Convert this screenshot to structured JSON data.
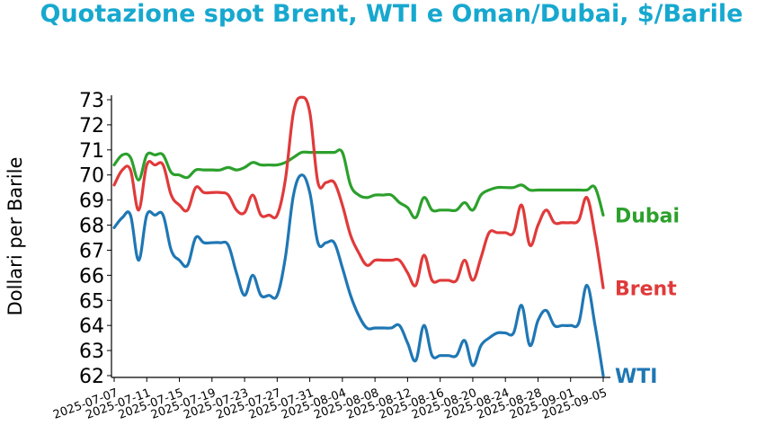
{
  "chart_data": {
    "type": "line",
    "title": "Quotazione spot Brent, WTI e Oman/Dubai, $/Barile",
    "xlabel": "",
    "ylabel": "Dollari per Barile",
    "ylim": [
      62,
      73
    ],
    "xlim": [
      "2025-07-07",
      "2025-09-05"
    ],
    "yticks": [
      62,
      63,
      64,
      65,
      66,
      67,
      68,
      69,
      70,
      71,
      72,
      73
    ],
    "xticks": [
      "2025-07-07",
      "2025-07-11",
      "2025-07-15",
      "2025-07-19",
      "2025-07-23",
      "2025-07-27",
      "2025-07-31",
      "2025-08-04",
      "2025-08-08",
      "2025-08-12",
      "2025-08-16",
      "2025-08-20",
      "2025-08-24",
      "2025-08-28",
      "2025-09-01",
      "2025-09-05"
    ],
    "grid": false,
    "legend": "inline labels at right end of lines",
    "series": [
      {
        "name": "Dubai",
        "color": "#2ca02c",
        "points": [
          [
            "2025-07-07",
            70.4
          ],
          [
            "2025-07-08",
            70.8
          ],
          [
            "2025-07-09",
            70.7
          ],
          [
            "2025-07-10",
            69.8
          ],
          [
            "2025-07-11",
            70.8
          ],
          [
            "2025-07-12",
            70.8
          ],
          [
            "2025-07-13",
            70.8
          ],
          [
            "2025-07-14",
            70.1
          ],
          [
            "2025-07-15",
            70.0
          ],
          [
            "2025-07-16",
            69.9
          ],
          [
            "2025-07-17",
            70.2
          ],
          [
            "2025-07-18",
            70.2
          ],
          [
            "2025-07-19",
            70.2
          ],
          [
            "2025-07-20",
            70.2
          ],
          [
            "2025-07-21",
            70.3
          ],
          [
            "2025-07-22",
            70.2
          ],
          [
            "2025-07-23",
            70.3
          ],
          [
            "2025-07-24",
            70.5
          ],
          [
            "2025-07-25",
            70.4
          ],
          [
            "2025-07-26",
            70.4
          ],
          [
            "2025-07-27",
            70.4
          ],
          [
            "2025-07-28",
            70.5
          ],
          [
            "2025-07-29",
            70.7
          ],
          [
            "2025-07-30",
            70.9
          ],
          [
            "2025-07-31",
            70.9
          ],
          [
            "2025-08-01",
            70.9
          ],
          [
            "2025-08-02",
            70.9
          ],
          [
            "2025-08-03",
            70.9
          ],
          [
            "2025-08-04",
            70.9
          ],
          [
            "2025-08-05",
            69.6
          ],
          [
            "2025-08-06",
            69.2
          ],
          [
            "2025-08-07",
            69.1
          ],
          [
            "2025-08-08",
            69.2
          ],
          [
            "2025-08-09",
            69.2
          ],
          [
            "2025-08-10",
            69.2
          ],
          [
            "2025-08-11",
            68.9
          ],
          [
            "2025-08-12",
            68.7
          ],
          [
            "2025-08-13",
            68.3
          ],
          [
            "2025-08-14",
            69.1
          ],
          [
            "2025-08-15",
            68.6
          ],
          [
            "2025-08-16",
            68.6
          ],
          [
            "2025-08-17",
            68.6
          ],
          [
            "2025-08-18",
            68.6
          ],
          [
            "2025-08-19",
            68.9
          ],
          [
            "2025-08-20",
            68.6
          ],
          [
            "2025-08-21",
            69.2
          ],
          [
            "2025-08-22",
            69.4
          ],
          [
            "2025-08-23",
            69.5
          ],
          [
            "2025-08-24",
            69.5
          ],
          [
            "2025-08-25",
            69.5
          ],
          [
            "2025-08-26",
            69.6
          ],
          [
            "2025-08-27",
            69.4
          ],
          [
            "2025-08-28",
            69.4
          ],
          [
            "2025-08-29",
            69.4
          ],
          [
            "2025-08-30",
            69.4
          ],
          [
            "2025-08-31",
            69.4
          ],
          [
            "2025-09-01",
            69.4
          ],
          [
            "2025-09-02",
            69.4
          ],
          [
            "2025-09-03",
            69.4
          ],
          [
            "2025-09-04",
            69.5
          ],
          [
            "2025-09-05",
            68.4
          ]
        ]
      },
      {
        "name": "Brent",
        "color": "#e03a3a",
        "points": [
          [
            "2025-07-07",
            69.6
          ],
          [
            "2025-07-08",
            70.2
          ],
          [
            "2025-07-09",
            70.2
          ],
          [
            "2025-07-10",
            68.6
          ],
          [
            "2025-07-11",
            70.4
          ],
          [
            "2025-07-12",
            70.4
          ],
          [
            "2025-07-13",
            70.4
          ],
          [
            "2025-07-14",
            69.2
          ],
          [
            "2025-07-15",
            68.8
          ],
          [
            "2025-07-16",
            68.6
          ],
          [
            "2025-07-17",
            69.5
          ],
          [
            "2025-07-18",
            69.3
          ],
          [
            "2025-07-19",
            69.3
          ],
          [
            "2025-07-20",
            69.3
          ],
          [
            "2025-07-21",
            69.2
          ],
          [
            "2025-07-22",
            68.6
          ],
          [
            "2025-07-23",
            68.5
          ],
          [
            "2025-07-24",
            69.2
          ],
          [
            "2025-07-25",
            68.4
          ],
          [
            "2025-07-26",
            68.4
          ],
          [
            "2025-07-27",
            68.4
          ],
          [
            "2025-07-28",
            69.8
          ],
          [
            "2025-07-29",
            72.5
          ],
          [
            "2025-07-30",
            73.1
          ],
          [
            "2025-07-31",
            72.5
          ],
          [
            "2025-08-01",
            69.7
          ],
          [
            "2025-08-02",
            69.7
          ],
          [
            "2025-08-03",
            69.7
          ],
          [
            "2025-08-04",
            68.8
          ],
          [
            "2025-08-05",
            67.6
          ],
          [
            "2025-08-06",
            66.9
          ],
          [
            "2025-08-07",
            66.4
          ],
          [
            "2025-08-08",
            66.6
          ],
          [
            "2025-08-09",
            66.6
          ],
          [
            "2025-08-10",
            66.6
          ],
          [
            "2025-08-11",
            66.6
          ],
          [
            "2025-08-12",
            66.1
          ],
          [
            "2025-08-13",
            65.6
          ],
          [
            "2025-08-14",
            66.8
          ],
          [
            "2025-08-15",
            65.8
          ],
          [
            "2025-08-16",
            65.8
          ],
          [
            "2025-08-17",
            65.8
          ],
          [
            "2025-08-18",
            65.8
          ],
          [
            "2025-08-19",
            66.6
          ],
          [
            "2025-08-20",
            65.8
          ],
          [
            "2025-08-21",
            66.7
          ],
          [
            "2025-08-22",
            67.7
          ],
          [
            "2025-08-23",
            67.7
          ],
          [
            "2025-08-24",
            67.7
          ],
          [
            "2025-08-25",
            67.7
          ],
          [
            "2025-08-26",
            68.8
          ],
          [
            "2025-08-27",
            67.2
          ],
          [
            "2025-08-28",
            68.0
          ],
          [
            "2025-08-29",
            68.6
          ],
          [
            "2025-08-30",
            68.1
          ],
          [
            "2025-08-31",
            68.1
          ],
          [
            "2025-09-01",
            68.1
          ],
          [
            "2025-09-02",
            68.2
          ],
          [
            "2025-09-03",
            69.1
          ],
          [
            "2025-09-04",
            67.6
          ],
          [
            "2025-09-05",
            65.5
          ]
        ]
      },
      {
        "name": "WTI",
        "color": "#1f77b4",
        "points": [
          [
            "2025-07-07",
            67.9
          ],
          [
            "2025-07-08",
            68.3
          ],
          [
            "2025-07-09",
            68.4
          ],
          [
            "2025-07-10",
            66.6
          ],
          [
            "2025-07-11",
            68.4
          ],
          [
            "2025-07-12",
            68.4
          ],
          [
            "2025-07-13",
            68.4
          ],
          [
            "2025-07-14",
            67.0
          ],
          [
            "2025-07-15",
            66.6
          ],
          [
            "2025-07-16",
            66.4
          ],
          [
            "2025-07-17",
            67.5
          ],
          [
            "2025-07-18",
            67.3
          ],
          [
            "2025-07-19",
            67.3
          ],
          [
            "2025-07-20",
            67.3
          ],
          [
            "2025-07-21",
            67.2
          ],
          [
            "2025-07-22",
            66.1
          ],
          [
            "2025-07-23",
            65.2
          ],
          [
            "2025-07-24",
            66.0
          ],
          [
            "2025-07-25",
            65.2
          ],
          [
            "2025-07-26",
            65.2
          ],
          [
            "2025-07-27",
            65.2
          ],
          [
            "2025-07-28",
            66.7
          ],
          [
            "2025-07-29",
            69.2
          ],
          [
            "2025-07-30",
            70.0
          ],
          [
            "2025-07-31",
            69.3
          ],
          [
            "2025-08-01",
            67.3
          ],
          [
            "2025-08-02",
            67.3
          ],
          [
            "2025-08-03",
            67.3
          ],
          [
            "2025-08-04",
            66.3
          ],
          [
            "2025-08-05",
            65.2
          ],
          [
            "2025-08-06",
            64.4
          ],
          [
            "2025-08-07",
            63.9
          ],
          [
            "2025-08-08",
            63.9
          ],
          [
            "2025-08-09",
            63.9
          ],
          [
            "2025-08-10",
            63.9
          ],
          [
            "2025-08-11",
            64.0
          ],
          [
            "2025-08-12",
            63.3
          ],
          [
            "2025-08-13",
            62.6
          ],
          [
            "2025-08-14",
            64.0
          ],
          [
            "2025-08-15",
            62.8
          ],
          [
            "2025-08-16",
            62.8
          ],
          [
            "2025-08-17",
            62.8
          ],
          [
            "2025-08-18",
            62.8
          ],
          [
            "2025-08-19",
            63.4
          ],
          [
            "2025-08-20",
            62.4
          ],
          [
            "2025-08-21",
            63.2
          ],
          [
            "2025-08-22",
            63.5
          ],
          [
            "2025-08-23",
            63.7
          ],
          [
            "2025-08-24",
            63.7
          ],
          [
            "2025-08-25",
            63.7
          ],
          [
            "2025-08-26",
            64.8
          ],
          [
            "2025-08-27",
            63.2
          ],
          [
            "2025-08-28",
            64.2
          ],
          [
            "2025-08-29",
            64.6
          ],
          [
            "2025-08-30",
            64.0
          ],
          [
            "2025-08-31",
            64.0
          ],
          [
            "2025-09-01",
            64.0
          ],
          [
            "2025-09-02",
            64.1
          ],
          [
            "2025-09-03",
            65.6
          ],
          [
            "2025-09-04",
            64.0
          ],
          [
            "2025-09-05",
            62.0
          ]
        ]
      }
    ],
    "series_labels": [
      "Dubai",
      "Brent",
      "WTI"
    ]
  }
}
